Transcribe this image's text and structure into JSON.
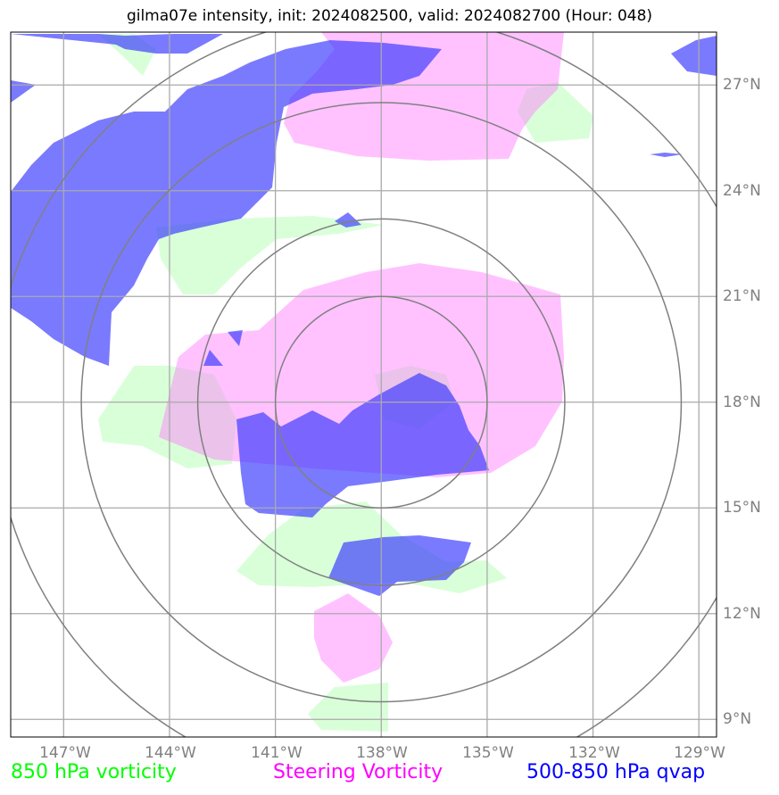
{
  "title": "gilma07e intensity, init: 2024082500, valid: 2024082700 (Hour: 048)",
  "map": {
    "lon_range": [
      -148.5,
      -128.5
    ],
    "lat_range": [
      8.5,
      28.5
    ],
    "lon_ticks": [
      {
        "value": -147,
        "label": "147°W"
      },
      {
        "value": -144,
        "label": "144°W"
      },
      {
        "value": -141,
        "label": "141°W"
      },
      {
        "value": -138,
        "label": "138°W"
      },
      {
        "value": -135,
        "label": "135°W"
      },
      {
        "value": -132,
        "label": "132°W"
      },
      {
        "value": -129,
        "label": "129°W"
      }
    ],
    "lat_ticks": [
      {
        "value": 9,
        "label": "9°N"
      },
      {
        "value": 12,
        "label": "12°N"
      },
      {
        "value": 15,
        "label": "15°N"
      },
      {
        "value": 18,
        "label": "18°N"
      },
      {
        "value": 21,
        "label": "21°N"
      },
      {
        "value": 24,
        "label": "24°N"
      },
      {
        "value": 27,
        "label": "27°N"
      }
    ],
    "storm_center": {
      "lon": -138.0,
      "lat": 18.0
    },
    "range_rings_deg": [
      3,
      5.2,
      8.5,
      11
    ],
    "gridline_color": "#aaaaaa",
    "ring_color": "#808080"
  },
  "fields": {
    "vorticity_850": {
      "color": "#ccffcc"
    },
    "steering_vorticity": {
      "color": "#ff77ff"
    },
    "qvap_500_850": {
      "color": "#3333ff"
    }
  },
  "legend": [
    {
      "label": "850 hPa vorticity",
      "color": "#00ff00"
    },
    {
      "label": "Steering Vorticity",
      "color": "#ff00ff"
    },
    {
      "label": "500-850 hPa qvap",
      "color": "#0000ff"
    }
  ]
}
